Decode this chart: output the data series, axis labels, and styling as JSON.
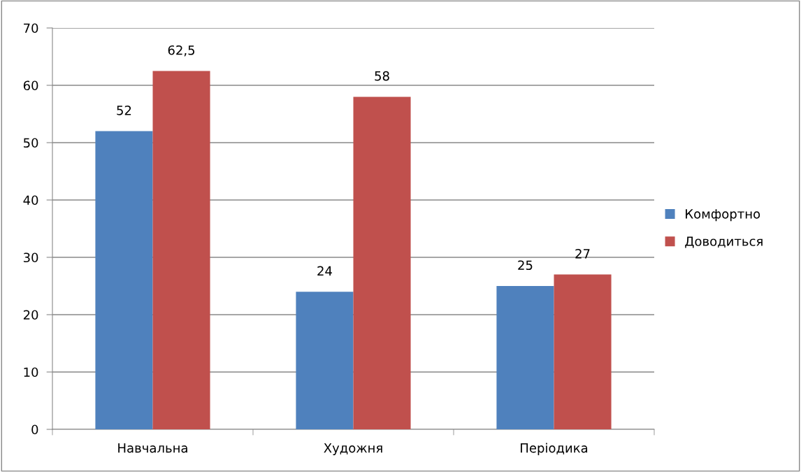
{
  "chart_data": {
    "type": "bar",
    "categories": [
      "Навчальна",
      "Художня",
      "Періодика"
    ],
    "series": [
      {
        "name": "Комфортно",
        "color": "#4f81bd",
        "values": [
          52,
          24,
          25
        ],
        "value_labels": [
          "52",
          "24",
          "25"
        ]
      },
      {
        "name": "Доводиться",
        "color": "#c0504d",
        "values": [
          62.5,
          58,
          27
        ],
        "value_labels": [
          "62,5",
          "58",
          "27"
        ]
      }
    ],
    "ylim": [
      0,
      70
    ],
    "yticks": [
      0,
      10,
      20,
      30,
      40,
      50,
      60,
      70
    ],
    "grid": "y",
    "legend": "right"
  }
}
